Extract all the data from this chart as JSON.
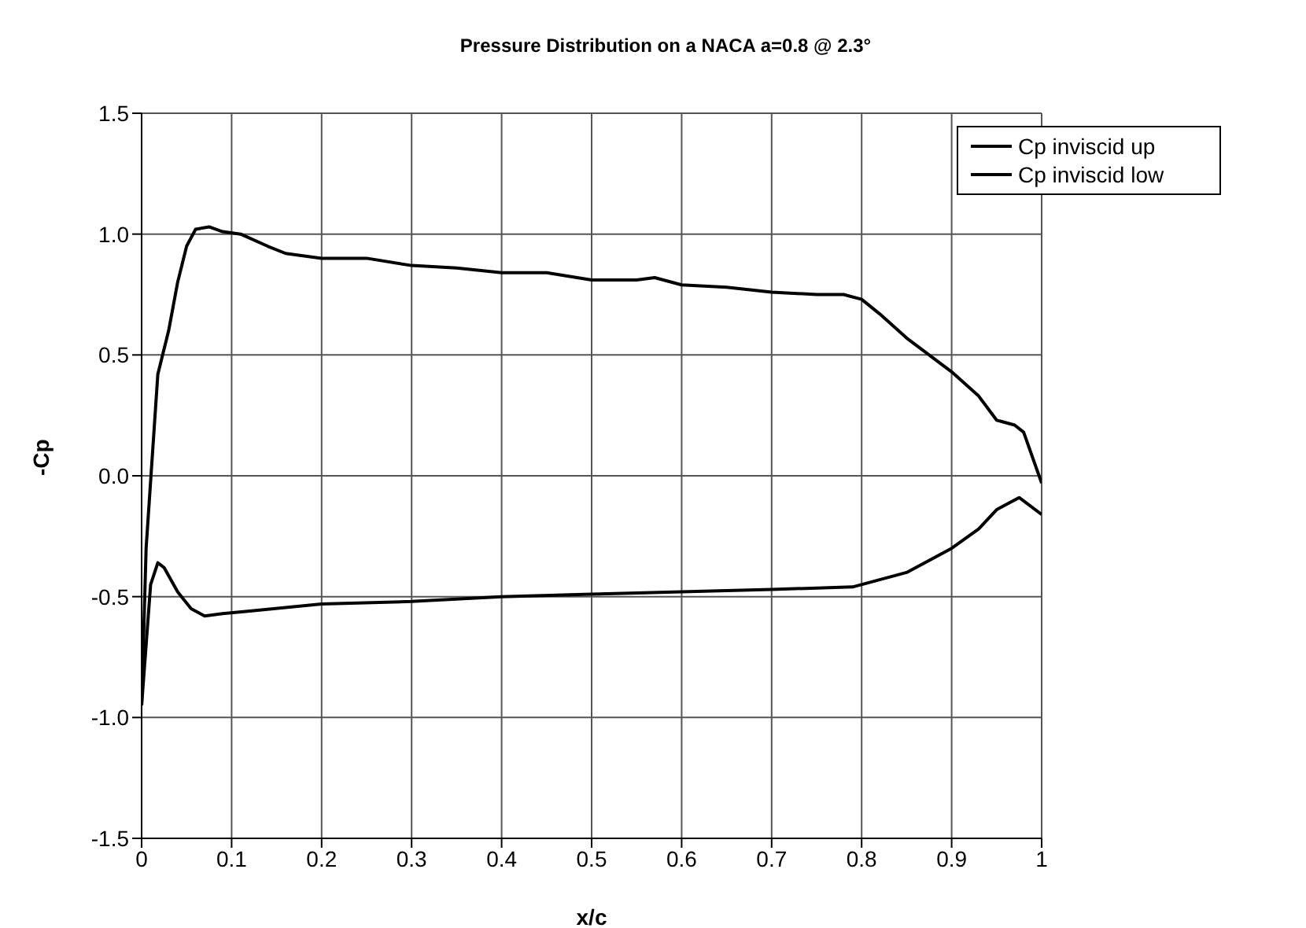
{
  "chart_data": {
    "type": "line",
    "title": "Pressure Distribution on a NACA a=0.8 @ 2.3°",
    "xlabel": "x/c",
    "ylabel": "-Cp",
    "xlim": [
      0,
      1
    ],
    "xticks": [
      0,
      0.1,
      0.2,
      0.3,
      0.4,
      0.5,
      0.6,
      0.7,
      0.8,
      0.9,
      1
    ],
    "ylim": [
      -1.5,
      1.5
    ],
    "yticks": [
      {
        "value": -1.5,
        "label": "-1.5"
      },
      {
        "value": -1,
        "label": "-1.0"
      },
      {
        "value": -0.5,
        "label": "-0.5"
      },
      {
        "value": 0,
        "label": "0.0"
      },
      {
        "value": 0.5,
        "label": "0.5"
      },
      {
        "value": 1,
        "label": "1.0"
      },
      {
        "value": 1.5,
        "label": "1.5"
      }
    ],
    "grid": true,
    "legend": "top right",
    "marker": "none",
    "line_style": "solid",
    "series": [
      {
        "name": "Cp inviscid up",
        "color": "#000000",
        "x": [
          0,
          0.005,
          0.018,
          0.03,
          0.04,
          0.05,
          0.06,
          0.075,
          0.09,
          0.11,
          0.14,
          0.16,
          0.2,
          0.25,
          0.3,
          0.35,
          0.4,
          0.45,
          0.5,
          0.55,
          0.57,
          0.6,
          0.65,
          0.7,
          0.75,
          0.78,
          0.8,
          0.82,
          0.85,
          0.9,
          0.93,
          0.95,
          0.97,
          0.98,
          1.0
        ],
        "values": [
          -0.95,
          -0.3,
          0.42,
          0.6,
          0.8,
          0.95,
          1.02,
          1.03,
          1.01,
          1.0,
          0.95,
          0.92,
          0.9,
          0.9,
          0.87,
          0.86,
          0.84,
          0.84,
          0.81,
          0.81,
          0.82,
          0.79,
          0.78,
          0.76,
          0.75,
          0.75,
          0.73,
          0.67,
          0.57,
          0.43,
          0.33,
          0.23,
          0.21,
          0.18,
          -0.03
        ]
      },
      {
        "name": "Cp inviscid low",
        "color": "#000000",
        "x": [
          0,
          0.01,
          0.018,
          0.025,
          0.04,
          0.055,
          0.07,
          0.09,
          0.12,
          0.2,
          0.3,
          0.4,
          0.5,
          0.6,
          0.7,
          0.79,
          0.85,
          0.9,
          0.93,
          0.95,
          0.975,
          1.0
        ],
        "values": [
          -0.95,
          -0.45,
          -0.36,
          -0.38,
          -0.48,
          -0.55,
          -0.58,
          -0.57,
          -0.56,
          -0.53,
          -0.52,
          -0.5,
          -0.49,
          -0.48,
          -0.47,
          -0.46,
          -0.4,
          -0.3,
          -0.22,
          -0.14,
          -0.09,
          -0.16
        ]
      }
    ]
  }
}
